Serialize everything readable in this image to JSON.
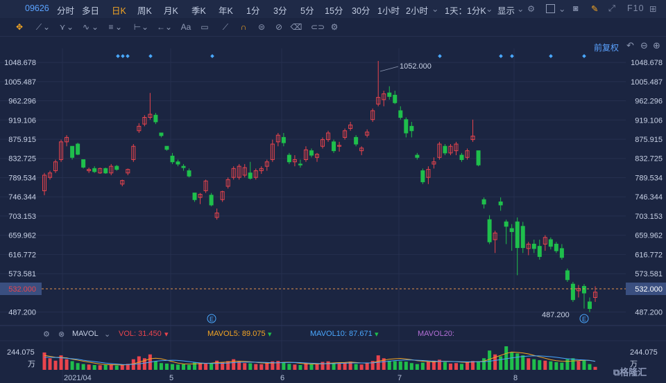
{
  "header": {
    "code": "09626",
    "tabs": [
      "分时",
      "多日",
      "日K",
      "周K",
      "月K",
      "季K",
      "年K",
      "1分",
      "3分",
      "5分",
      "15分",
      "30分",
      "1小时",
      "2小时"
    ],
    "active_tab": "日K",
    "period_select": "1天：1分K",
    "display_select": "显示",
    "f10": "F10"
  },
  "toolbar": {
    "text_tool": "Aa",
    "adjust": "前复权"
  },
  "axis": {
    "right_labels": [
      "1048.678",
      "1005.487",
      "962.296",
      "919.106",
      "875.915",
      "832.725",
      "789.534",
      "746.344",
      "703.153",
      "659.962",
      "616.772",
      "573.581",
      "487.200"
    ],
    "current_price": "532.000",
    "x_labels": [
      "2021/04",
      "5",
      "6",
      "7",
      "8"
    ],
    "vol_label": "244.075",
    "vol_unit": "万",
    "high_label": "1052.000",
    "low_label": "487.200",
    "event_marker": "E"
  },
  "volume_legend": {
    "name": "MAVOL",
    "vol": "VOL: 31.450",
    "ma5": "MAVOL5: 89.075",
    "ma10": "MAVOL10: 87.671",
    "ma20": "MAVOL20:"
  },
  "brand": {
    "logo": "格隆汇"
  },
  "colors": {
    "up": "#e9444d",
    "down": "#1fbf4c",
    "ma5": "#f5a623",
    "ma10": "#4aa8ff",
    "ma20": "#b36fd6"
  },
  "chart_data": {
    "type": "candlestick",
    "y_range": [
      460,
      1080
    ],
    "candles": [
      {
        "o": 760,
        "h": 800,
        "l": 750,
        "c": 795
      },
      {
        "o": 790,
        "h": 805,
        "l": 785,
        "c": 800
      },
      {
        "o": 805,
        "h": 830,
        "l": 800,
        "c": 825
      },
      {
        "o": 830,
        "h": 875,
        "l": 825,
        "c": 870
      },
      {
        "o": 870,
        "h": 885,
        "l": 860,
        "c": 880
      },
      {
        "o": 860,
        "h": 860,
        "l": 830,
        "c": 835
      },
      {
        "o": 865,
        "h": 868,
        "l": 840,
        "c": 842
      },
      {
        "o": 830,
        "h": 830,
        "l": 810,
        "c": 813
      },
      {
        "o": 805,
        "h": 812,
        "l": 800,
        "c": 808
      },
      {
        "o": 810,
        "h": 815,
        "l": 800,
        "c": 803
      },
      {
        "o": 800,
        "h": 812,
        "l": 798,
        "c": 810
      },
      {
        "o": 810,
        "h": 812,
        "l": 798,
        "c": 800
      },
      {
        "o": 800,
        "h": 820,
        "l": 795,
        "c": 815
      },
      {
        "o": 815,
        "h": 818,
        "l": 805,
        "c": 808
      },
      {
        "o": 775,
        "h": 785,
        "l": 770,
        "c": 783
      },
      {
        "o": 800,
        "h": 810,
        "l": 795,
        "c": 808
      },
      {
        "o": 830,
        "h": 865,
        "l": 825,
        "c": 860
      },
      {
        "o": 895,
        "h": 912,
        "l": 890,
        "c": 905
      },
      {
        "o": 910,
        "h": 930,
        "l": 905,
        "c": 925
      },
      {
        "o": 925,
        "h": 980,
        "l": 920,
        "c": 932
      },
      {
        "o": 930,
        "h": 935,
        "l": 910,
        "c": 915
      },
      {
        "o": 890,
        "h": 890,
        "l": 880,
        "c": 884
      },
      {
        "o": 860,
        "h": 860,
        "l": 850,
        "c": 853
      },
      {
        "o": 838,
        "h": 845,
        "l": 820,
        "c": 825
      },
      {
        "o": 825,
        "h": 830,
        "l": 815,
        "c": 820
      },
      {
        "o": 815,
        "h": 820,
        "l": 805,
        "c": 812
      },
      {
        "o": 805,
        "h": 810,
        "l": 790,
        "c": 793
      },
      {
        "o": 755,
        "h": 755,
        "l": 735,
        "c": 740
      },
      {
        "o": 745,
        "h": 755,
        "l": 730,
        "c": 752
      },
      {
        "o": 760,
        "h": 785,
        "l": 755,
        "c": 782
      },
      {
        "o": 750,
        "h": 755,
        "l": 725,
        "c": 728
      },
      {
        "o": 700,
        "h": 720,
        "l": 695,
        "c": 710
      },
      {
        "o": 740,
        "h": 760,
        "l": 735,
        "c": 758
      },
      {
        "o": 770,
        "h": 790,
        "l": 765,
        "c": 785
      },
      {
        "o": 790,
        "h": 815,
        "l": 785,
        "c": 810
      },
      {
        "o": 790,
        "h": 820,
        "l": 785,
        "c": 815
      },
      {
        "o": 795,
        "h": 820,
        "l": 790,
        "c": 812
      },
      {
        "o": 800,
        "h": 825,
        "l": 785,
        "c": 788
      },
      {
        "o": 790,
        "h": 810,
        "l": 785,
        "c": 805
      },
      {
        "o": 805,
        "h": 815,
        "l": 798,
        "c": 810
      },
      {
        "o": 815,
        "h": 830,
        "l": 805,
        "c": 825
      },
      {
        "o": 830,
        "h": 875,
        "l": 825,
        "c": 865
      },
      {
        "o": 870,
        "h": 890,
        "l": 860,
        "c": 885
      },
      {
        "o": 880,
        "h": 890,
        "l": 860,
        "c": 868
      },
      {
        "o": 840,
        "h": 845,
        "l": 820,
        "c": 825
      },
      {
        "o": 825,
        "h": 840,
        "l": 815,
        "c": 830
      },
      {
        "o": 820,
        "h": 830,
        "l": 812,
        "c": 818
      },
      {
        "o": 830,
        "h": 860,
        "l": 825,
        "c": 852
      },
      {
        "o": 850,
        "h": 855,
        "l": 835,
        "c": 840
      },
      {
        "o": 835,
        "h": 845,
        "l": 825,
        "c": 842
      },
      {
        "o": 860,
        "h": 880,
        "l": 855,
        "c": 875
      },
      {
        "o": 875,
        "h": 895,
        "l": 870,
        "c": 890
      },
      {
        "o": 870,
        "h": 875,
        "l": 845,
        "c": 850
      },
      {
        "o": 860,
        "h": 870,
        "l": 848,
        "c": 862
      },
      {
        "o": 880,
        "h": 900,
        "l": 875,
        "c": 895
      },
      {
        "o": 900,
        "h": 915,
        "l": 895,
        "c": 908
      },
      {
        "o": 880,
        "h": 885,
        "l": 860,
        "c": 865
      },
      {
        "o": 850,
        "h": 860,
        "l": 840,
        "c": 856
      },
      {
        "o": 885,
        "h": 898,
        "l": 880,
        "c": 892
      },
      {
        "o": 920,
        "h": 945,
        "l": 915,
        "c": 940
      },
      {
        "o": 955,
        "h": 1052,
        "l": 950,
        "c": 970
      },
      {
        "o": 965,
        "h": 985,
        "l": 950,
        "c": 978
      },
      {
        "o": 980,
        "h": 995,
        "l": 965,
        "c": 972
      },
      {
        "o": 975,
        "h": 985,
        "l": 955,
        "c": 958
      },
      {
        "o": 940,
        "h": 950,
        "l": 920,
        "c": 925
      },
      {
        "o": 920,
        "h": 925,
        "l": 880,
        "c": 890
      },
      {
        "o": 905,
        "h": 915,
        "l": 880,
        "c": 895
      },
      {
        "o": 840,
        "h": 845,
        "l": 830,
        "c": 835
      },
      {
        "o": 805,
        "h": 810,
        "l": 775,
        "c": 780
      },
      {
        "o": 790,
        "h": 815,
        "l": 775,
        "c": 808
      },
      {
        "o": 820,
        "h": 835,
        "l": 810,
        "c": 825
      },
      {
        "o": 835,
        "h": 870,
        "l": 830,
        "c": 865
      },
      {
        "o": 860,
        "h": 865,
        "l": 840,
        "c": 845
      },
      {
        "o": 845,
        "h": 865,
        "l": 840,
        "c": 860
      },
      {
        "o": 850,
        "h": 870,
        "l": 840,
        "c": 865
      },
      {
        "o": 840,
        "h": 845,
        "l": 825,
        "c": 830
      },
      {
        "o": 835,
        "h": 855,
        "l": 830,
        "c": 850
      },
      {
        "o": 875,
        "h": 920,
        "l": 870,
        "c": 883
      },
      {
        "o": 850,
        "h": 850,
        "l": 815,
        "c": 818
      },
      {
        "o": 740,
        "h": 745,
        "l": 720,
        "c": 730
      },
      {
        "o": 695,
        "h": 705,
        "l": 640,
        "c": 645
      },
      {
        "o": 650,
        "h": 670,
        "l": 620,
        "c": 665
      },
      {
        "o": 735,
        "h": 745,
        "l": 715,
        "c": 728
      },
      {
        "o": 690,
        "h": 695,
        "l": 640,
        "c": 680
      },
      {
        "o": 675,
        "h": 685,
        "l": 625,
        "c": 668
      },
      {
        "o": 690,
        "h": 700,
        "l": 570,
        "c": 632
      },
      {
        "o": 680,
        "h": 690,
        "l": 620,
        "c": 632
      },
      {
        "o": 630,
        "h": 645,
        "l": 615,
        "c": 640
      },
      {
        "o": 640,
        "h": 650,
        "l": 620,
        "c": 630
      },
      {
        "o": 635,
        "h": 650,
        "l": 605,
        "c": 612
      },
      {
        "o": 640,
        "h": 660,
        "l": 625,
        "c": 655
      },
      {
        "o": 650,
        "h": 655,
        "l": 628,
        "c": 635
      },
      {
        "o": 640,
        "h": 645,
        "l": 620,
        "c": 625
      },
      {
        "o": 630,
        "h": 640,
        "l": 605,
        "c": 610
      },
      {
        "o": 580,
        "h": 585,
        "l": 555,
        "c": 560
      },
      {
        "o": 550,
        "h": 555,
        "l": 510,
        "c": 515
      },
      {
        "o": 535,
        "h": 548,
        "l": 520,
        "c": 540
      },
      {
        "o": 545,
        "h": 550,
        "l": 495,
        "c": 530
      },
      {
        "o": 510,
        "h": 520,
        "l": 487,
        "c": 495
      },
      {
        "o": 520,
        "h": 545,
        "l": 510,
        "c": 532
      }
    ],
    "volume": [
      180,
      120,
      95,
      150,
      110,
      90,
      70,
      60,
      55,
      50,
      48,
      52,
      58,
      45,
      50,
      62,
      110,
      140,
      120,
      160,
      90,
      70,
      65,
      60,
      55,
      58,
      52,
      75,
      70,
      68,
      66,
      95,
      80,
      90,
      110,
      85,
      70,
      68,
      60,
      58,
      75,
      88,
      92,
      80,
      62,
      55,
      50,
      72,
      60,
      58,
      82,
      88,
      70,
      65,
      78,
      85,
      60,
      55,
      70,
      92,
      150,
      120,
      95,
      90,
      88,
      85,
      70,
      60,
      75,
      82,
      95,
      105,
      80,
      65,
      70,
      62,
      78,
      92,
      88,
      120,
      200,
      160,
      140,
      244,
      180,
      170,
      150,
      120,
      110,
      100,
      95,
      88,
      80,
      75,
      110,
      120,
      90,
      100,
      60,
      31
    ],
    "ma5_vol": [
      150,
      140,
      130,
      128,
      125,
      110,
      100,
      90,
      80,
      70,
      60,
      55,
      53,
      52,
      50,
      55,
      62,
      80,
      95,
      115,
      120,
      115,
      100,
      85,
      70,
      62,
      60,
      62,
      65,
      68,
      70,
      75,
      78,
      82,
      88,
      90,
      87,
      84,
      78,
      72,
      70,
      70,
      74,
      78,
      80,
      75,
      68,
      62,
      60,
      60,
      62,
      68,
      72,
      75,
      76,
      80,
      76,
      72,
      70,
      74,
      90,
      100,
      110,
      115,
      118,
      112,
      105,
      95,
      90,
      85,
      82,
      88,
      90,
      88,
      85,
      80,
      78,
      82,
      85,
      90,
      110,
      130,
      150,
      170,
      185,
      180,
      175,
      165,
      150,
      135,
      120,
      105,
      95,
      90,
      88,
      92,
      95,
      100,
      98,
      89
    ],
    "ma10_vol": [
      130,
      130,
      128,
      125,
      120,
      115,
      110,
      100,
      92,
      85,
      78,
      70,
      65,
      60,
      56,
      55,
      57,
      62,
      70,
      80,
      90,
      95,
      98,
      100,
      98,
      92,
      85,
      78,
      72,
      68,
      66,
      66,
      68,
      70,
      75,
      78,
      80,
      81,
      80,
      78,
      76,
      74,
      74,
      75,
      76,
      77,
      75,
      72,
      69,
      66,
      64,
      64,
      65,
      67,
      69,
      71,
      72,
      72,
      72,
      73,
      78,
      84,
      90,
      96,
      100,
      102,
      102,
      100,
      97,
      93,
      90,
      88,
      87,
      86,
      85,
      84,
      83,
      83,
      84,
      85,
      90,
      98,
      106,
      116,
      124,
      132,
      138,
      143,
      145,
      144,
      141,
      136,
      130,
      122,
      115,
      110,
      105,
      102,
      98,
      88
    ]
  },
  "markers": {
    "top_dots_x": [
      170,
      177,
      184,
      217,
      306,
      634,
      722,
      738,
      794,
      842
    ]
  }
}
